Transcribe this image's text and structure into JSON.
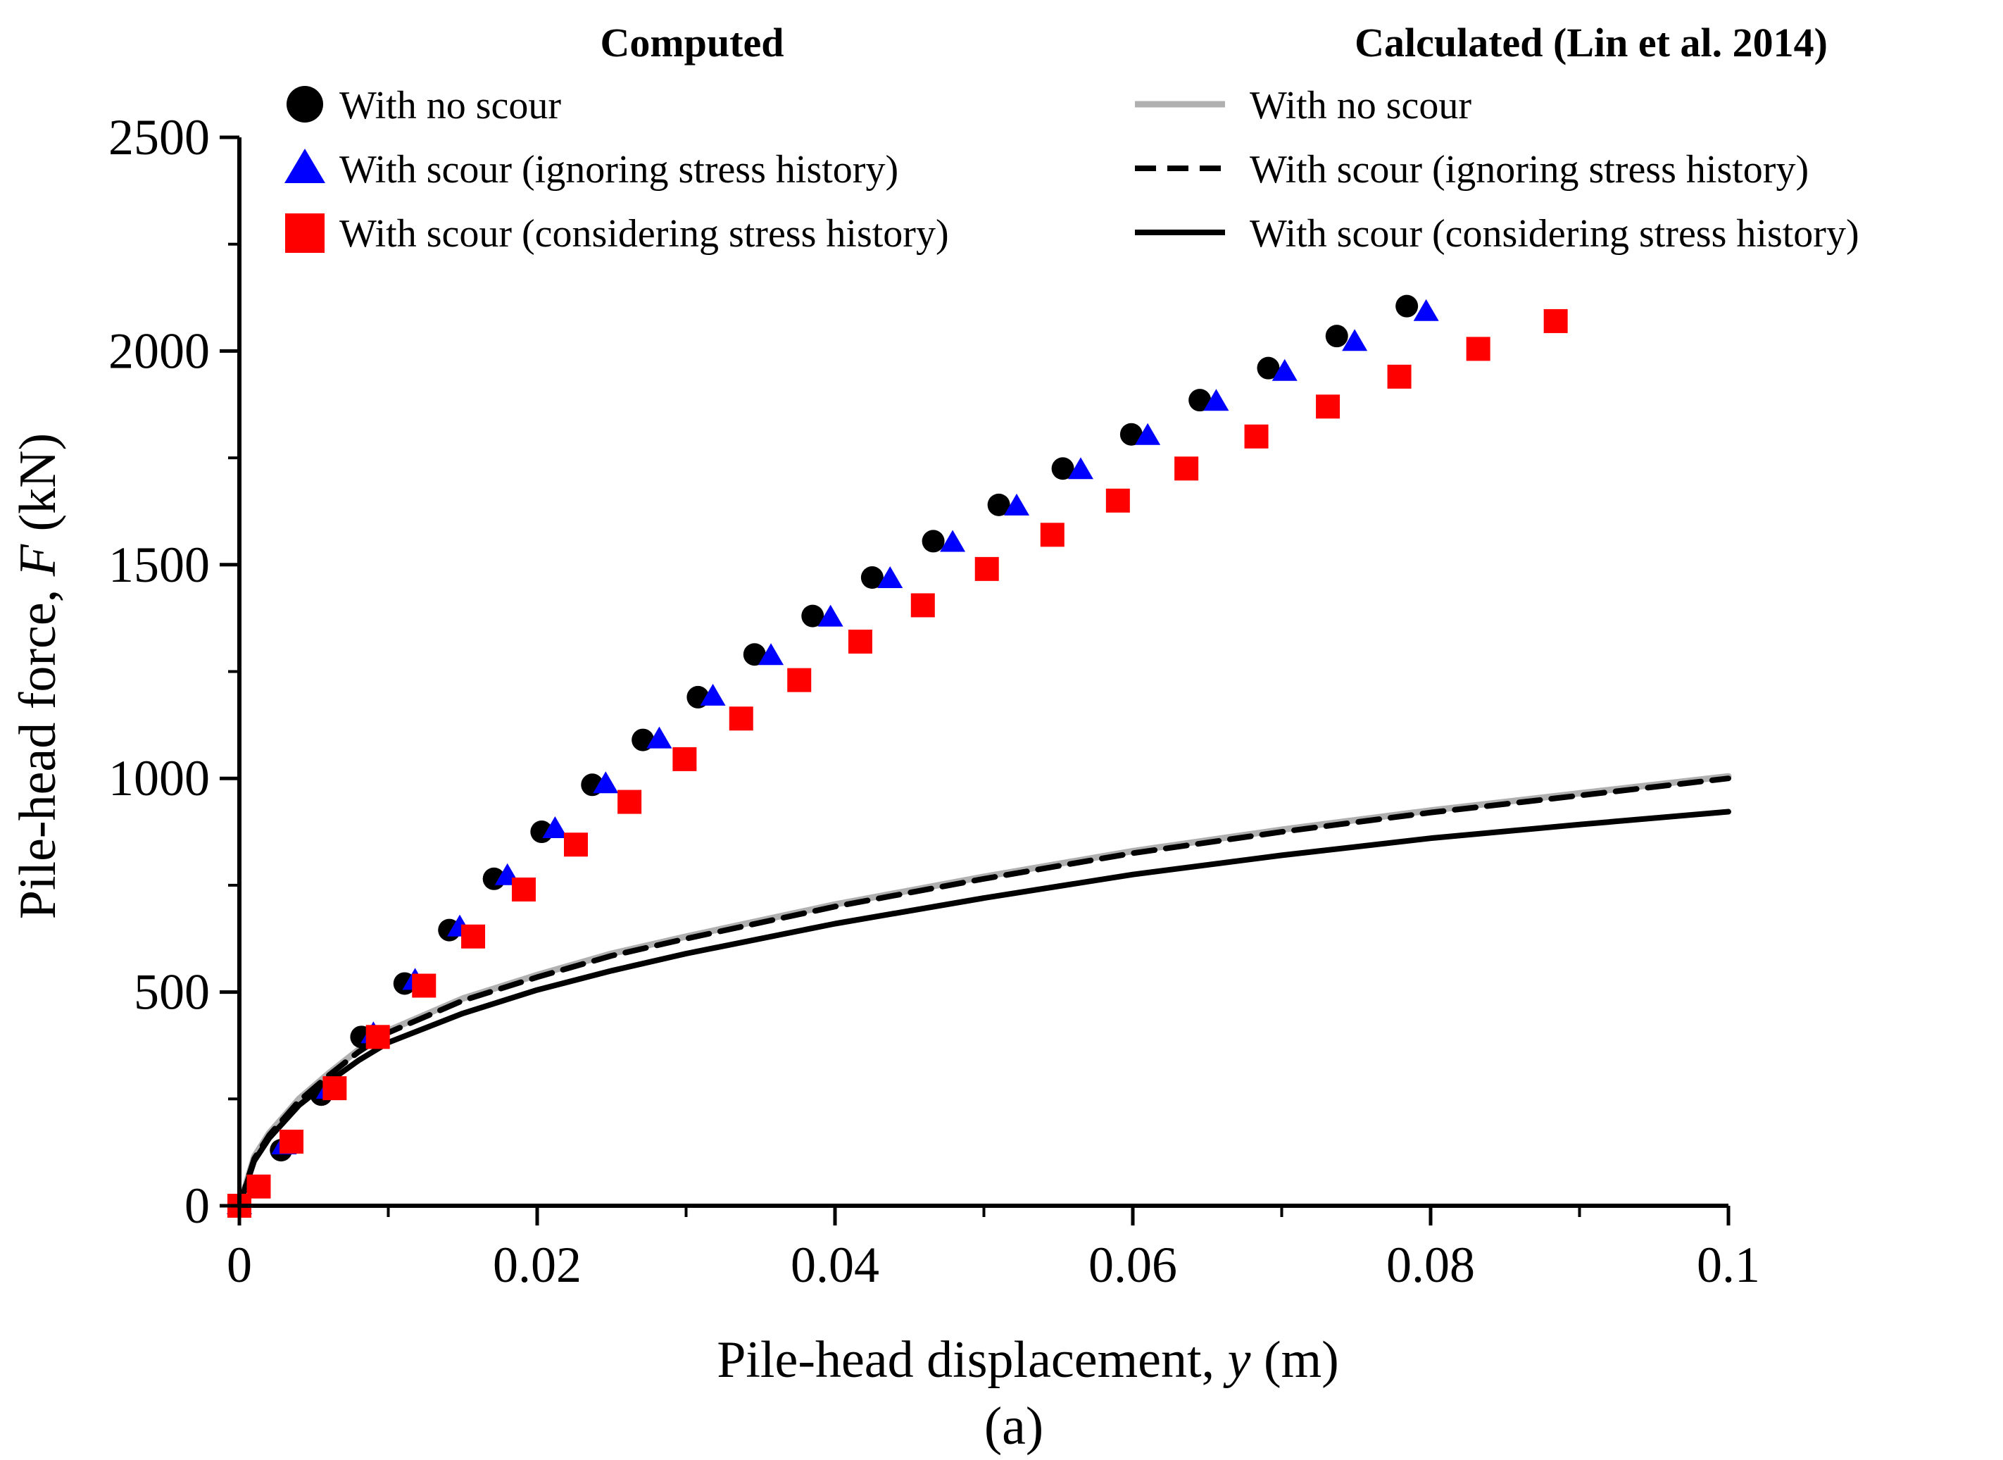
{
  "chart_data": {
    "type": "scatter",
    "panel_label": "(a)",
    "xlabel_prefix": "Pile-head displacement, ",
    "xlabel_var": "y",
    "xlabel_unit": " (m)",
    "ylabel_prefix": "Pile-head force, ",
    "ylabel_var": "F",
    "ylabel_unit": " (kN)",
    "xlim": [
      0,
      0.1
    ],
    "ylim": [
      0,
      2500
    ],
    "xticks": [
      0,
      0.02,
      0.04,
      0.06,
      0.08,
      0.1
    ],
    "xtick_labels": [
      "0",
      "0.02",
      "0.04",
      "0.06",
      "0.08",
      "0.1"
    ],
    "yticks": [
      0,
      500,
      1000,
      1500,
      2000,
      2500
    ],
    "ytick_labels": [
      "0",
      "500",
      "1000",
      "1500",
      "2000",
      "2500"
    ],
    "grid": false,
    "legend": {
      "placement": "top",
      "computed_title": "Computed",
      "calculated_title": "Calculated (Lin et al. 2014)"
    },
    "computed_series": [
      {
        "name": "With no scour",
        "marker": "circle",
        "color": "#000000",
        "x": [
          0,
          0.0028,
          0.0055,
          0.0082,
          0.0111,
          0.0141,
          0.0171,
          0.0203,
          0.0237,
          0.0271,
          0.0308,
          0.0346,
          0.0385,
          0.0425,
          0.0466,
          0.051,
          0.0553,
          0.0599,
          0.0645,
          0.0691,
          0.0737,
          0.0784
        ],
        "y": [
          0,
          130,
          260,
          395,
          520,
          645,
          765,
          875,
          985,
          1090,
          1190,
          1290,
          1380,
          1470,
          1555,
          1640,
          1725,
          1805,
          1885,
          1960,
          2035,
          2105
        ]
      },
      {
        "name": "With scour (ignoring stress history)",
        "marker": "triangle",
        "color": "#0000ff",
        "x": [
          0,
          0.003,
          0.006,
          0.009,
          0.0118,
          0.0148,
          0.018,
          0.0212,
          0.0246,
          0.0282,
          0.0318,
          0.0357,
          0.0397,
          0.0437,
          0.0479,
          0.0522,
          0.0565,
          0.061,
          0.0656,
          0.0702,
          0.0749,
          0.0797
        ],
        "y": [
          0,
          140,
          270,
          400,
          525,
          650,
          770,
          880,
          985,
          1090,
          1190,
          1285,
          1375,
          1465,
          1550,
          1635,
          1720,
          1800,
          1880,
          1950,
          2020,
          2090
        ]
      },
      {
        "name": "With scour (considering stress history)",
        "marker": "square",
        "color": "#ff0000",
        "x": [
          0,
          0.0013,
          0.0035,
          0.0064,
          0.0093,
          0.0124,
          0.0157,
          0.0191,
          0.0226,
          0.0262,
          0.0299,
          0.0337,
          0.0376,
          0.0417,
          0.0459,
          0.0502,
          0.0546,
          0.059,
          0.0636,
          0.0683,
          0.0731,
          0.0779,
          0.0832,
          0.0884
        ],
        "y": [
          0,
          45,
          150,
          275,
          395,
          515,
          630,
          740,
          845,
          945,
          1045,
          1140,
          1230,
          1320,
          1405,
          1490,
          1570,
          1650,
          1725,
          1800,
          1870,
          1940,
          2005,
          2070
        ]
      }
    ],
    "calculated_series": [
      {
        "name": "With no scour",
        "style": "solid",
        "color": "#b0b0b0",
        "x": [
          0,
          0.001,
          0.002,
          0.004,
          0.006,
          0.008,
          0.01,
          0.015,
          0.02,
          0.025,
          0.03,
          0.04,
          0.05,
          0.06,
          0.07,
          0.08,
          0.09,
          0.1
        ],
        "y": [
          0,
          115,
          170,
          250,
          310,
          365,
          410,
          485,
          540,
          590,
          630,
          705,
          770,
          830,
          880,
          925,
          965,
          1005
        ]
      },
      {
        "name": "With scour (ignoring stress history)",
        "style": "dashed",
        "color": "#000000",
        "x": [
          0,
          0.001,
          0.002,
          0.004,
          0.006,
          0.008,
          0.01,
          0.015,
          0.02,
          0.025,
          0.03,
          0.04,
          0.05,
          0.06,
          0.07,
          0.08,
          0.09,
          0.1
        ],
        "y": [
          0,
          110,
          165,
          245,
          305,
          360,
          405,
          480,
          535,
          585,
          625,
          700,
          765,
          825,
          875,
          920,
          960,
          1000
        ]
      },
      {
        "name": "With scour (considering stress history)",
        "style": "solid",
        "color": "#000000",
        "x": [
          0,
          0.001,
          0.002,
          0.004,
          0.006,
          0.008,
          0.01,
          0.015,
          0.02,
          0.025,
          0.03,
          0.04,
          0.05,
          0.06,
          0.07,
          0.08,
          0.09,
          0.1
        ],
        "y": [
          0,
          105,
          158,
          235,
          290,
          340,
          382,
          450,
          505,
          550,
          590,
          660,
          720,
          775,
          820,
          860,
          892,
          922
        ]
      }
    ]
  }
}
